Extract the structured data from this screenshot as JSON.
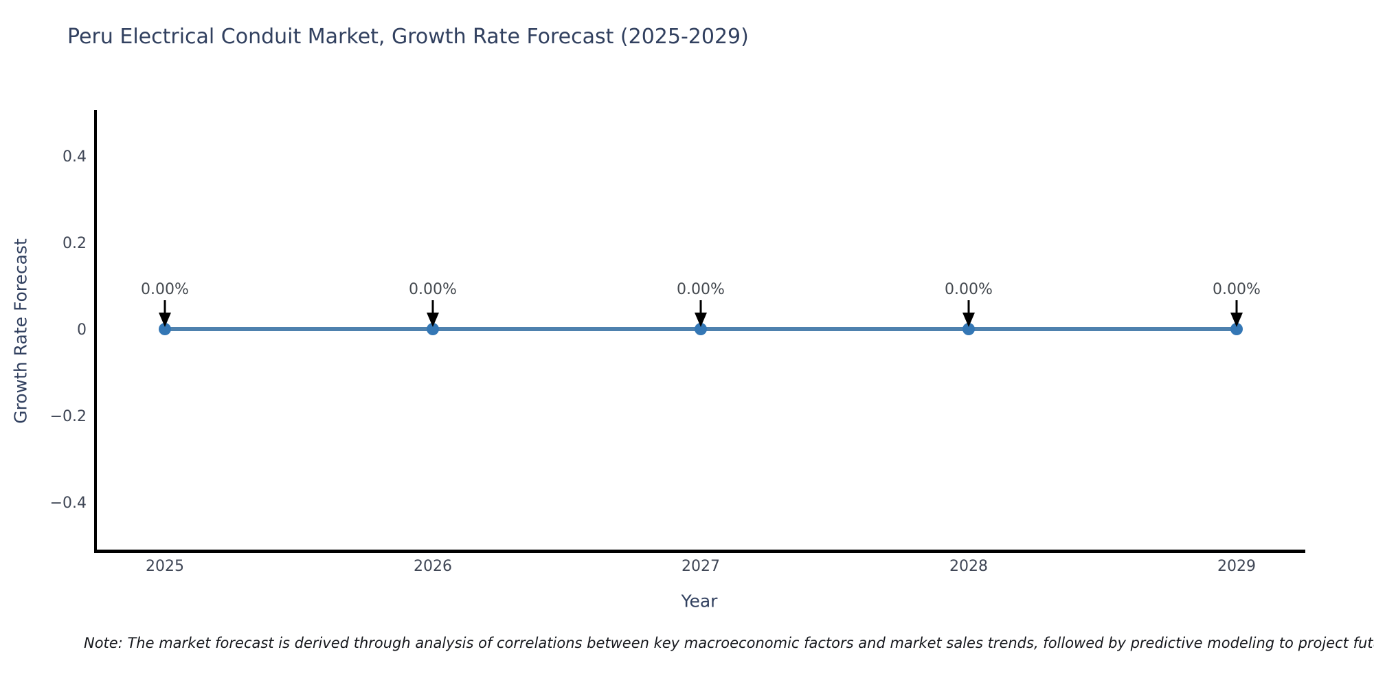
{
  "page": {
    "background": "#ffffff"
  },
  "chart": {
    "title": "Peru Electrical Conduit Market, Growth Rate Forecast (2025-2029)",
    "xlabel": "Year",
    "ylabel": "Growth Rate Forecast",
    "note": "Note: The market forecast is derived through analysis of correlations between key macroeconomic factors and market sales trends, followed by predictive modeling to project future sa",
    "colors": {
      "line": "#4e81ae",
      "marker": "#3477b5",
      "arrow": "#000000",
      "axis": "#000000",
      "tick_text": "#3f4655",
      "annotation_text": "#44494f",
      "title_text": "#31405f"
    }
  },
  "chart_data": {
    "type": "line",
    "x": [
      "2025",
      "2026",
      "2027",
      "2028",
      "2029"
    ],
    "values": [
      0,
      0,
      0,
      0,
      0
    ],
    "point_labels": [
      "0.00%",
      "0.00%",
      "0.00%",
      "0.00%",
      "0.00%"
    ],
    "title": "Peru Electrical Conduit Market, Growth Rate Forecast (2025-2029)",
    "xlabel": "Year",
    "ylabel": "Growth Rate Forecast",
    "ylim": [
      -0.51,
      0.51
    ],
    "ytick_labels": [
      "0.4",
      "0.2",
      "0",
      "−0.2",
      "−0.4"
    ],
    "ytick_values": [
      0.4,
      0.2,
      0,
      -0.2,
      -0.4
    ],
    "grid": false,
    "legend": "none",
    "annotation_style": "black down arrow from label to marker"
  }
}
